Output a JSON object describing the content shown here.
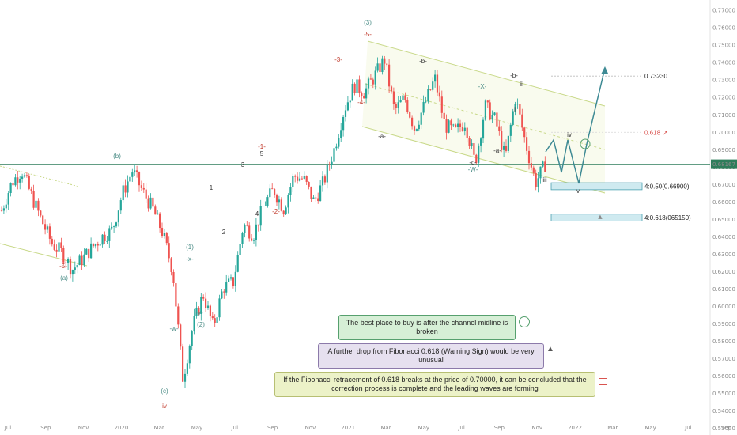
{
  "chart_data": {
    "type": "line",
    "series_style": "candlestick price chart with Elliott wave annotations",
    "y_ticks": [
      "0.77000",
      "0.76000",
      "0.75000",
      "0.74000",
      "0.73000",
      "0.72000",
      "0.71000",
      "0.70000",
      "0.69000",
      "0.68000",
      "0.67000",
      "0.66000",
      "0.65000",
      "0.64000",
      "0.63000",
      "0.62000",
      "0.61000",
      "0.60000",
      "0.59000",
      "0.58000",
      "0.57000",
      "0.56000",
      "0.55000",
      "0.54000",
      "0.53000"
    ],
    "x_ticks": [
      "Jul",
      "Sep",
      "Nov",
      "2020",
      "Mar",
      "May",
      "Jul",
      "Sep",
      "Nov",
      "2021",
      "Mar",
      "May",
      "Jul",
      "Sep",
      "Nov",
      "2022",
      "Mar",
      "May",
      "Jul",
      "Sep"
    ],
    "ylim": [
      0.527,
      0.776
    ],
    "current_price_label": "0.68167",
    "current_price": 0.68167,
    "price_path": [
      [
        "Jul",
        0.655
      ],
      [
        "Jul",
        0.671
      ],
      [
        "Jul",
        0.678
      ],
      [
        "Jul",
        0.663
      ],
      [
        "Aug",
        0.649
      ],
      [
        "Aug",
        0.636
      ],
      [
        "Sep",
        0.631
      ],
      [
        "Sep",
        0.621
      ],
      [
        "Oct",
        0.627
      ],
      [
        "Oct",
        0.634
      ],
      [
        "Nov",
        0.64
      ],
      [
        "Nov",
        0.644
      ],
      [
        "Dec",
        0.665
      ],
      [
        "2020",
        0.678
      ],
      [
        "2020",
        0.666
      ],
      [
        "Feb",
        0.656
      ],
      [
        "Feb",
        0.642
      ],
      [
        "Mar",
        0.62
      ],
      [
        "Mar",
        0.558
      ],
      [
        "Mar",
        0.589
      ],
      [
        "Apr",
        0.607
      ],
      [
        "Apr",
        0.588
      ],
      [
        "May",
        0.611
      ],
      [
        "May",
        0.614
      ],
      [
        "Jun",
        0.647
      ],
      [
        "Jun",
        0.641
      ],
      [
        "Jul",
        0.658
      ],
      [
        "Jul",
        0.667
      ],
      [
        "Aug",
        0.656
      ],
      [
        "Aug",
        0.675
      ],
      [
        "Sep",
        0.673
      ],
      [
        "Sep",
        0.66
      ],
      [
        "Oct",
        0.672
      ],
      [
        "Nov",
        0.69
      ],
      [
        "Dec",
        0.713
      ],
      [
        "Dec",
        0.727
      ],
      [
        "2021",
        0.723
      ],
      [
        "Feb",
        0.732
      ],
      [
        "Feb",
        0.742
      ],
      [
        "Mar",
        0.712
      ],
      [
        "Mar",
        0.72
      ],
      [
        "Apr",
        0.702
      ],
      [
        "Apr",
        0.716
      ],
      [
        "May",
        0.731
      ],
      [
        "Jun",
        0.704
      ],
      [
        "Jul",
        0.7
      ],
      [
        "Jul",
        0.706
      ],
      [
        "Aug",
        0.682
      ],
      [
        "Sep",
        0.715
      ],
      [
        "Sep",
        0.707
      ],
      [
        "Oct",
        0.685
      ],
      [
        "Oct",
        0.72
      ],
      [
        "Nov",
        0.694
      ],
      [
        "Dec",
        0.671
      ],
      [
        "Dec",
        0.682
      ]
    ],
    "projection": [
      [
        "Dec",
        0.682
      ],
      [
        "2022",
        0.688
      ],
      [
        "2022",
        0.672
      ],
      [
        "Jan",
        0.69
      ],
      [
        "Feb",
        0.665
      ],
      [
        "Feb",
        0.686
      ],
      [
        "Apr",
        0.731
      ]
    ],
    "target_label": "0.73230",
    "target_price": 0.7323,
    "fib_label": "0.618",
    "fib_price": 0.7,
    "zones": [
      {
        "label": "4:0.50(0.66900)",
        "low": 0.667,
        "high": 0.671
      },
      {
        "label": "4:0.618(065150)",
        "low": 0.649,
        "high": 0.653
      }
    ],
    "wave_labels": [
      {
        "text": "(a)",
        "color": "#4a8c86"
      },
      {
        "text": "-5-",
        "color": "#c0392b"
      },
      {
        "text": "(b)",
        "color": "#4a8c86"
      },
      {
        "text": "(c)",
        "color": "#4a8c86"
      },
      {
        "text": "iv",
        "color": "#c0392b"
      },
      {
        "text": "-w-",
        "color": "#4a8c86"
      },
      {
        "text": "(1)",
        "color": "#4a8c86"
      },
      {
        "text": "-x-",
        "color": "#4a8c86"
      },
      {
        "text": "-y-",
        "color": "#4a8c86"
      },
      {
        "text": "(2)",
        "color": "#4a8c86"
      },
      {
        "text": "1",
        "color": "#333333"
      },
      {
        "text": "2",
        "color": "#333333"
      },
      {
        "text": "3",
        "color": "#333333"
      },
      {
        "text": "4",
        "color": "#333333"
      },
      {
        "text": "5",
        "color": "#333333"
      },
      {
        "text": "-1-",
        "color": "#c0392b"
      },
      {
        "text": "-2-",
        "color": "#c0392b"
      },
      {
        "text": "-3-",
        "color": "#c0392b"
      },
      {
        "text": "-4-",
        "color": "#c0392b"
      },
      {
        "text": "(3)",
        "color": "#4a8c86"
      },
      {
        "text": "-5-",
        "color": "#c0392b"
      },
      {
        "text": "-a-",
        "color": "#333333"
      },
      {
        "text": "-b-",
        "color": "#333333"
      },
      {
        "text": "-c-",
        "color": "#333333"
      },
      {
        "text": "-W-",
        "color": "#4a8c86"
      },
      {
        "text": "-X-",
        "color": "#4a8c86"
      },
      {
        "text": "-a-",
        "color": "#333333"
      },
      {
        "text": "-b-",
        "color": "#333333"
      },
      {
        "text": "ii",
        "color": "#333333"
      },
      {
        "text": "i",
        "color": "#333333"
      },
      {
        "text": "iii",
        "color": "#333333"
      },
      {
        "text": "iv",
        "color": "#333333"
      },
      {
        "text": "v",
        "color": "#333333"
      }
    ],
    "annotations": [
      "The best place to buy is after the channel midline is broken",
      "A further drop from Fibonacci 0.618 (Warning Sign) would be very unusual",
      "If the Fibonacci retracement of 0.618 breaks at the price of 0.70000, it can be concluded that the correction process is complete and the leading waves are forming"
    ],
    "colors": {
      "bull": "#26a69a",
      "bear": "#ef5350",
      "channel": "#c9d98a",
      "projection": "#3e8a94",
      "zone_fill": "#cfeaf0",
      "zone_border": "#4aa0b0",
      "fib": "#d9534f",
      "current_price_bg": "#2e7d5b"
    }
  }
}
